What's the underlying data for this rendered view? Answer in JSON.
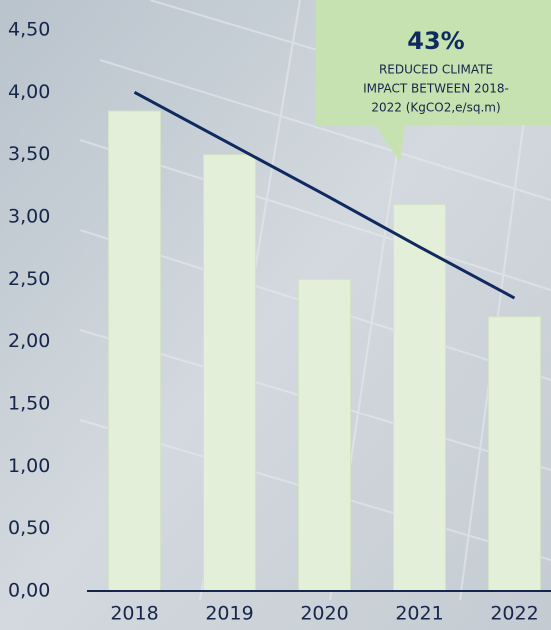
{
  "chart_data": {
    "type": "bar",
    "categories": [
      "2018",
      "2019",
      "2020",
      "2021",
      "2022"
    ],
    "values": [
      3.85,
      3.5,
      2.5,
      3.1,
      2.2
    ],
    "color": "#e3efd9",
    "trend_values": [
      4.0,
      3.59,
      3.18,
      2.76,
      2.35
    ],
    "trend_color": "#0f2a5e",
    "ylim": [
      0,
      4.5
    ],
    "yticks": [
      {
        "value": 0,
        "label": "0,00"
      },
      {
        "value": 0.5,
        "label": "0,50"
      },
      {
        "value": 1,
        "label": "1,00"
      },
      {
        "value": 1.5,
        "label": "1,50"
      },
      {
        "value": 2,
        "label": "2,00"
      },
      {
        "value": 2.5,
        "label": "2,50"
      },
      {
        "value": 3,
        "label": "3,00"
      },
      {
        "value": 3.5,
        "label": "3,50"
      },
      {
        "value": 4,
        "label": "4,00"
      },
      {
        "value": 4.5,
        "label": "4,50"
      }
    ],
    "annotation": {
      "headline": "43%",
      "lines": [
        "REDUCED CLIMATE",
        "IMPACT BETWEEN 2018-",
        "2022 (KgCO2,e/sq.m)"
      ]
    }
  }
}
